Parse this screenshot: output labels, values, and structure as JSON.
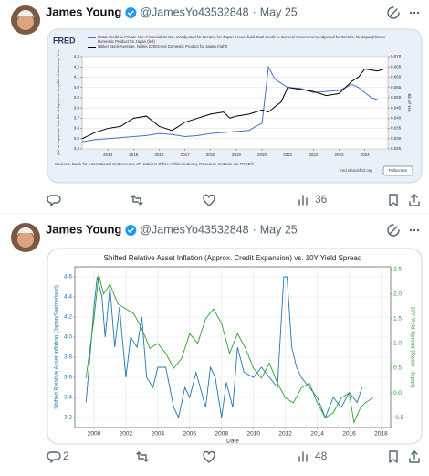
{
  "tweets": [
    {
      "name": "James Young",
      "handle": "@JamesYo43532848",
      "separator": "·",
      "date": "May 25",
      "replies": null,
      "likes": 36,
      "chart": {
        "type": "line",
        "logo": "FRED",
        "ylabel": "(Bil. of Japanese Yen+Bil. of Japanese Yen)/Bil. of Japanese Yen",
        "y2label": "Bil. of Yen",
        "source": "Sources: Bank for International Settlements; JP. Cabinet Office; Nikkei Industry Research Institute via FRED®",
        "site": "fred.stlouisfed.org",
        "button": "Fullscreen",
        "xlim": [
          2013.0,
          2024.9
        ],
        "xticks": [
          2014,
          2015,
          2016,
          2017,
          2018,
          2019,
          2020,
          2021,
          2022,
          2023,
          2024
        ],
        "ylim": [
          3.4,
          4.3
        ],
        "yticks": [
          3.4,
          3.5,
          3.6,
          3.7,
          3.8,
          3.9,
          {
            "value": 4.0,
            "label": "4.0"
          },
          4.1,
          4.2,
          4.3
        ],
        "y2lim": [
          0.025,
          0.07
        ],
        "y2ticks": [
          {
            "value": 0.025,
            "label": "0.025"
          },
          {
            "value": 0.03,
            "label": "0.030"
          },
          {
            "value": 0.035,
            "label": "0.035"
          },
          {
            "value": 0.04,
            "label": "0.040"
          },
          {
            "value": 0.045,
            "label": "0.045"
          },
          {
            "value": 0.05,
            "label": "0.050"
          },
          {
            "value": 0.055,
            "label": "0.055"
          },
          {
            "value": 0.06,
            "label": "0.060"
          },
          {
            "value": 0.065,
            "label": "0.065"
          },
          {
            "value": 0.07,
            "label": "0.070"
          }
        ],
        "grid": true,
        "series": [
          {
            "name": "(Total Credit to Private Non-Financial Sector, Unadjusted for Breaks, for Japan+Household Total Credit to General Government, Adjusted for Breaks, for Japan)/Gross Domestic Product for Japan (left)",
            "color": "#4472c4",
            "axis": "y",
            "x": [
              2013,
              2013.5,
              2014,
              2014.5,
              2015,
              2015.5,
              2016,
              2016.5,
              2017,
              2017.5,
              2018,
              2018.5,
              2019,
              2019.5,
              2019.75,
              2020,
              2020.25,
              2020.5,
              2020.75,
              2021,
              2021.5,
              2022,
              2022.5,
              2023,
              2023.5,
              2023.75,
              2024,
              2024.25,
              2024.5
            ],
            "values": [
              3.47,
              3.49,
              3.5,
              3.51,
              3.52,
              3.53,
              3.55,
              3.54,
              3.52,
              3.53,
              3.55,
              3.56,
              3.57,
              3.58,
              3.62,
              3.65,
              4.2,
              4.08,
              4.04,
              4.0,
              3.99,
              3.95,
              3.96,
              3.97,
              4.03,
              4.0,
              3.95,
              3.9,
              3.88
            ]
          },
          {
            "name": "Nikkei Stock Average, Nikkei 225/Gross Domestic Product for Japan (right)",
            "color": "#000000",
            "axis": "y2",
            "x": [
              2013,
              2013.5,
              2014,
              2014.5,
              2015,
              2015.5,
              2016,
              2016.5,
              2017,
              2017.5,
              2018,
              2018.5,
              2018.75,
              2019,
              2019.5,
              2020,
              2020.25,
              2020.75,
              2021,
              2021.5,
              2022,
              2022.5,
              2023,
              2023.5,
              2023.75,
              2024,
              2024.5,
              2024.75
            ],
            "values": [
              0.03,
              0.033,
              0.035,
              0.036,
              0.04,
              0.041,
              0.036,
              0.034,
              0.038,
              0.04,
              0.042,
              0.043,
              0.04,
              0.041,
              0.042,
              0.044,
              0.043,
              0.048,
              0.055,
              0.054,
              0.053,
              0.051,
              0.052,
              0.058,
              0.06,
              0.064,
              0.063,
              0.064
            ]
          }
        ]
      }
    },
    {
      "name": "James Young",
      "handle": "@JamesYo43532848",
      "separator": "·",
      "date": "May 25",
      "replies": 2,
      "likes": 48,
      "chart": {
        "type": "line",
        "title": "Shifted Relative Asset Inflation (Approx. Credit Expansion) vs. 10Y Yield Spread",
        "xlabel": "Date",
        "ylabel": "Shifted Relative Asset Inflation (Japan/Switzerland)",
        "y2label": "10Y Yield Spread (Swiss - Japan)",
        "xlim": [
          1998.8,
          2018.6
        ],
        "xticks": [
          2000,
          2002,
          2004,
          2006,
          2008,
          2010,
          2012,
          2014,
          2016,
          2018
        ],
        "ylim": [
          3.1,
          4.7
        ],
        "yticks": [
          3.2,
          3.4,
          3.6,
          3.8,
          {
            "value": 4.0,
            "label": "4.0"
          },
          4.2,
          4.4,
          4.6
        ],
        "y2lim": [
          -0.7,
          2.55
        ],
        "y2ticks": [
          -0.5,
          {
            "value": 0,
            "label": "0.0"
          },
          0.5,
          {
            "value": 1,
            "label": "1.0"
          },
          1.5,
          {
            "value": 2,
            "label": "2.0"
          },
          2.5
        ],
        "grid": true,
        "series": [
          {
            "name": "Shifted Relative Asset Inflation",
            "color": "#1f77b4",
            "axis": "y",
            "x": [
              1999.5,
              1999.8,
              2000.0,
              2000.2,
              2000.5,
              2000.7,
              2001.0,
              2001.3,
              2001.6,
              2002.0,
              2002.3,
              2002.7,
              2003.0,
              2003.3,
              2003.7,
              2004.0,
              2004.5,
              2005.0,
              2005.3,
              2005.7,
              2006.0,
              2006.4,
              2007.0,
              2007.3,
              2007.6,
              2008.0,
              2008.3,
              2008.7,
              2009.0,
              2009.4,
              2010.0,
              2010.5,
              2011.0,
              2011.5,
              2011.9,
              2012.1,
              2012.4,
              2012.7,
              2013.0,
              2013.5,
              2014.0,
              2014.5,
              2015.0,
              2015.5,
              2016.0,
              2016.5,
              2016.8
            ],
            "values": [
              3.35,
              3.9,
              4.3,
              4.6,
              4.4,
              4.0,
              4.5,
              3.9,
              4.3,
              3.6,
              4.0,
              3.9,
              4.2,
              3.6,
              3.5,
              3.7,
              3.7,
              3.3,
              3.2,
              3.5,
              3.4,
              3.65,
              3.3,
              3.7,
              3.6,
              3.2,
              3.55,
              3.3,
              3.9,
              3.65,
              3.6,
              3.7,
              3.6,
              3.5,
              4.6,
              4.6,
              3.9,
              3.7,
              3.6,
              3.5,
              3.4,
              3.2,
              3.4,
              3.3,
              3.45,
              3.35,
              3.5
            ]
          },
          {
            "name": "10Y Yield Spread",
            "color": "#2ca02c",
            "axis": "y2",
            "x": [
              1999.5,
              2000.0,
              2000.3,
              2000.6,
              2001.0,
              2001.5,
              2002.0,
              2002.5,
              2003.0,
              2003.5,
              2004.0,
              2004.5,
              2005.0,
              2005.5,
              2006.0,
              2006.5,
              2007.0,
              2007.5,
              2008.0,
              2008.5,
              2009.0,
              2009.5,
              2010.0,
              2010.5,
              2011.0,
              2011.5,
              2012.0,
              2012.5,
              2013.0,
              2013.5,
              2014.0,
              2014.5,
              2015.0,
              2015.5,
              2016.0,
              2016.3,
              2016.7,
              2017.0,
              2017.5
            ],
            "values": [
              0.3,
              1.5,
              2.4,
              2.0,
              2.2,
              1.8,
              1.7,
              1.6,
              1.3,
              0.9,
              1.0,
              0.8,
              0.5,
              0.7,
              1.2,
              1.0,
              1.5,
              1.7,
              1.4,
              0.8,
              1.2,
              0.9,
              0.5,
              0.3,
              0.6,
              0.2,
              -0.1,
              -0.2,
              0.1,
              0.2,
              -0.2,
              -0.5,
              -0.4,
              -0.1,
              0.0,
              -0.6,
              -0.3,
              -0.2,
              -0.1
            ]
          }
        ]
      }
    }
  ]
}
